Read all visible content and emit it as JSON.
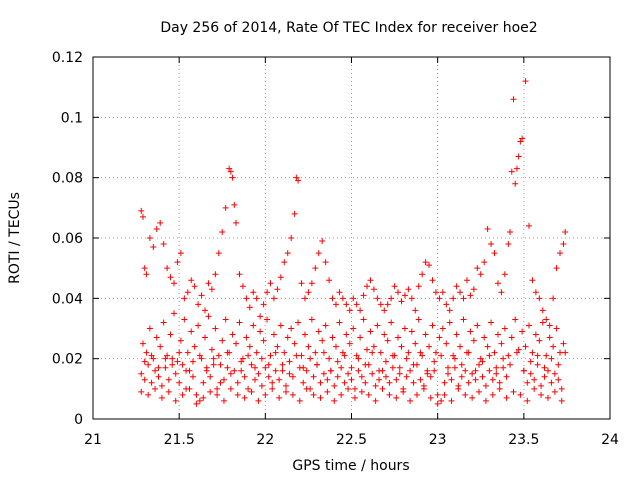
{
  "chart_data": {
    "type": "scatter",
    "title": "Day 256 of 2014, Rate Of TEC Index for receiver hoe2",
    "xlabel": "GPS time / hours",
    "ylabel": "ROTI / TECUs",
    "xlim": [
      21,
      24
    ],
    "ylim": [
      0,
      0.12
    ],
    "xticks": [
      "21",
      "21.5",
      "22",
      "22.5",
      "23",
      "23.5",
      "24"
    ],
    "yticks": [
      "0",
      "0.02",
      "0.04",
      "0.06",
      "0.08",
      "0.1",
      "0.12"
    ],
    "xtick_values": [
      21,
      21.5,
      22,
      22.5,
      23,
      23.5,
      24
    ],
    "ytick_values": [
      0,
      0.02,
      0.04,
      0.06,
      0.08,
      0.1,
      0.12
    ],
    "grid": true,
    "marker": "+",
    "color": "#ff0000",
    "series": [
      {
        "name": "ROTI",
        "x": [
          21.28,
          21.29,
          21.3,
          21.31,
          21.33,
          21.35,
          21.37,
          21.39,
          21.41,
          21.43,
          21.45,
          21.47,
          21.49,
          21.51,
          21.53,
          21.55,
          21.57,
          21.59,
          21.61,
          21.63,
          21.65,
          21.67,
          21.69,
          21.71,
          21.73,
          21.75,
          21.77,
          21.79,
          21.8,
          21.81,
          21.82,
          21.83,
          21.85,
          21.87,
          21.89,
          21.91,
          21.93,
          21.95,
          21.97,
          21.99,
          22.01,
          22.03,
          22.05,
          22.07,
          22.09,
          22.11,
          22.13,
          22.15,
          22.17,
          22.18,
          22.19,
          22.21,
          22.23,
          22.25,
          22.27,
          22.29,
          22.31,
          22.33,
          22.35,
          22.37,
          22.39,
          22.41,
          22.43,
          22.45,
          22.47,
          22.49,
          22.51,
          22.53,
          22.55,
          22.57,
          22.59,
          22.61,
          22.63,
          22.65,
          22.67,
          22.69,
          22.71,
          22.73,
          22.75,
          22.77,
          22.79,
          22.81,
          22.83,
          22.85,
          22.87,
          22.89,
          22.91,
          22.93,
          22.95,
          22.97,
          22.99,
          23.01,
          23.03,
          23.05,
          23.07,
          23.09,
          23.11,
          23.13,
          23.15,
          23.17,
          23.19,
          23.21,
          23.23,
          23.25,
          23.27,
          23.29,
          23.31,
          23.33,
          23.35,
          23.37,
          23.39,
          23.41,
          23.42,
          23.43,
          23.44,
          23.45,
          23.46,
          23.47,
          23.48,
          23.49,
          23.51,
          23.53,
          23.55,
          23.57,
          23.59,
          23.61,
          23.63,
          23.65,
          23.67,
          23.69,
          23.71,
          23.73,
          23.74,
          21.28,
          21.3,
          21.32,
          21.34,
          21.36,
          21.38,
          21.4,
          21.42,
          21.44,
          21.46,
          21.48,
          21.5,
          21.52,
          21.54,
          21.56,
          21.58,
          21.6,
          21.62,
          21.64,
          21.66,
          21.68,
          21.7,
          21.72,
          21.74,
          21.76,
          21.78,
          21.8,
          21.84,
          21.86,
          21.88,
          21.9,
          21.92,
          21.94,
          21.96,
          21.98,
          22.0,
          22.02,
          22.04,
          22.06,
          22.08,
          22.1,
          22.12,
          22.14,
          22.16,
          22.2,
          22.22,
          22.24,
          22.26,
          22.28,
          22.3,
          22.32,
          22.34,
          22.36,
          22.38,
          22.4,
          22.42,
          22.44,
          22.46,
          22.48,
          22.5,
          22.52,
          22.54,
          22.56,
          22.58,
          22.6,
          22.62,
          22.64,
          22.66,
          22.68,
          22.7,
          22.72,
          22.74,
          22.76,
          22.78,
          22.8,
          22.82,
          22.84,
          22.86,
          22.88,
          22.9,
          22.92,
          22.94,
          22.96,
          22.98,
          23.0,
          23.02,
          23.04,
          23.06,
          23.08,
          23.1,
          23.12,
          23.14,
          23.16,
          23.18,
          23.2,
          23.22,
          23.24,
          23.26,
          23.28,
          23.3,
          23.32,
          23.34,
          23.36,
          23.38,
          23.4,
          23.5,
          23.52,
          23.54,
          23.56,
          23.58,
          23.6,
          23.62,
          23.64,
          23.66,
          23.68,
          23.7,
          23.72,
          21.29,
          21.31,
          21.33,
          21.35,
          21.37,
          21.39,
          21.41,
          21.43,
          21.45,
          21.47,
          21.49,
          21.51,
          21.53,
          21.55,
          21.57,
          21.59,
          21.61,
          21.63,
          21.65,
          21.67,
          21.69,
          21.71,
          21.73,
          21.75,
          21.77,
          21.79,
          21.81,
          21.83,
          21.85,
          21.87,
          21.89,
          21.91,
          21.93,
          21.95,
          21.97,
          21.99,
          22.01,
          22.03,
          22.05,
          22.07,
          22.09,
          22.11,
          22.13,
          22.15,
          22.17,
          22.19,
          22.21,
          22.23,
          22.25,
          22.27,
          22.29,
          22.31,
          22.33,
          22.35,
          22.37,
          22.39,
          22.41,
          22.43,
          22.45,
          22.47,
          22.49,
          22.51,
          22.53,
          22.55,
          22.57,
          22.59,
          22.61,
          22.63,
          22.65,
          22.67,
          22.69,
          22.71,
          22.73,
          22.75,
          22.77,
          22.79,
          22.81,
          22.83,
          22.85,
          22.87,
          22.89,
          22.91,
          22.93,
          22.95,
          22.97,
          22.99,
          23.01,
          23.03,
          23.05,
          23.07,
          23.09,
          23.11,
          23.13,
          23.15,
          23.17,
          23.19,
          23.21,
          23.23,
          23.25,
          23.27,
          23.29,
          23.31,
          23.33,
          23.35,
          23.37,
          23.39,
          23.41,
          23.43,
          23.45,
          23.47,
          23.49,
          23.51,
          23.53,
          23.55,
          23.57,
          23.59,
          23.61,
          23.63,
          23.65,
          23.67,
          23.69,
          23.71,
          23.73,
          21.28,
          21.32,
          21.36,
          21.4,
          21.44,
          21.48,
          21.52,
          21.56,
          21.6,
          21.64,
          21.68,
          21.72,
          21.76,
          21.8,
          21.84,
          21.88,
          21.92,
          21.96,
          22.0,
          22.04,
          22.08,
          22.12,
          22.16,
          22.2,
          22.24,
          22.28,
          22.32,
          22.36,
          22.4,
          22.44,
          22.48,
          22.52,
          22.56,
          22.6,
          22.64,
          22.68,
          22.72,
          22.76,
          22.8,
          22.84,
          22.88,
          22.92,
          22.96,
          23.0,
          23.04,
          23.08,
          23.12,
          23.16,
          23.2,
          23.24,
          23.28,
          23.32,
          23.36,
          23.4,
          23.44,
          23.48,
          23.52,
          23.56,
          23.6,
          23.64,
          23.68,
          23.72,
          21.3,
          21.34,
          21.38,
          21.42,
          21.46,
          21.5,
          21.54,
          21.58,
          21.62,
          21.66,
          21.7,
          21.74,
          21.78,
          21.82,
          21.86,
          21.9,
          21.94,
          21.98,
          22.02,
          22.06,
          22.1,
          22.14,
          22.18,
          22.22,
          22.26,
          22.3,
          22.34,
          22.38,
          22.42,
          22.46,
          22.5,
          22.54,
          22.58,
          22.62,
          22.66,
          22.7,
          22.74,
          22.78,
          22.82,
          22.86,
          22.9,
          22.94,
          22.98,
          23.02,
          23.06,
          23.1,
          23.14,
          23.18,
          23.22,
          23.26,
          23.3,
          23.34,
          23.38,
          23.42,
          23.46,
          23.5,
          23.54,
          23.58,
          23.62,
          23.66,
          23.7,
          23.74
        ],
        "y": [
          0.069,
          0.067,
          0.05,
          0.048,
          0.06,
          0.057,
          0.063,
          0.065,
          0.058,
          0.05,
          0.047,
          0.045,
          0.052,
          0.055,
          0.04,
          0.042,
          0.046,
          0.044,
          0.038,
          0.041,
          0.036,
          0.045,
          0.043,
          0.048,
          0.055,
          0.062,
          0.07,
          0.083,
          0.082,
          0.08,
          0.071,
          0.065,
          0.048,
          0.044,
          0.04,
          0.037,
          0.042,
          0.04,
          0.034,
          0.038,
          0.042,
          0.045,
          0.04,
          0.043,
          0.047,
          0.052,
          0.055,
          0.06,
          0.068,
          0.08,
          0.079,
          0.045,
          0.04,
          0.042,
          0.045,
          0.05,
          0.055,
          0.059,
          0.052,
          0.046,
          0.04,
          0.038,
          0.042,
          0.04,
          0.038,
          0.036,
          0.04,
          0.038,
          0.036,
          0.041,
          0.044,
          0.046,
          0.043,
          0.04,
          0.038,
          0.036,
          0.038,
          0.04,
          0.044,
          0.042,
          0.039,
          0.041,
          0.043,
          0.04,
          0.036,
          0.044,
          0.048,
          0.052,
          0.051,
          0.046,
          0.042,
          0.04,
          0.042,
          0.038,
          0.036,
          0.04,
          0.044,
          0.042,
          0.04,
          0.046,
          0.041,
          0.043,
          0.05,
          0.048,
          0.052,
          0.063,
          0.058,
          0.055,
          0.045,
          0.042,
          0.048,
          0.058,
          0.062,
          0.082,
          0.106,
          0.078,
          0.083,
          0.087,
          0.092,
          0.093,
          0.112,
          0.064,
          0.046,
          0.042,
          0.04,
          0.036,
          0.033,
          0.031,
          0.04,
          0.05,
          0.055,
          0.058,
          0.062,
          0.015,
          0.013,
          0.018,
          0.012,
          0.016,
          0.014,
          0.011,
          0.017,
          0.013,
          0.02,
          0.015,
          0.012,
          0.018,
          0.01,
          0.016,
          0.014,
          0.008,
          0.006,
          0.012,
          0.016,
          0.014,
          0.018,
          0.01,
          0.012,
          0.013,
          0.017,
          0.015,
          0.012,
          0.016,
          0.014,
          0.01,
          0.018,
          0.013,
          0.015,
          0.011,
          0.017,
          0.014,
          0.012,
          0.016,
          0.013,
          0.018,
          0.011,
          0.015,
          0.014,
          0.017,
          0.012,
          0.016,
          0.01,
          0.014,
          0.018,
          0.012,
          0.015,
          0.013,
          0.016,
          0.011,
          0.014,
          0.017,
          0.012,
          0.015,
          0.013,
          0.01,
          0.016,
          0.014,
          0.012,
          0.018,
          0.015,
          0.011,
          0.013,
          0.016,
          0.014,
          0.012,
          0.017,
          0.013,
          0.015,
          0.01,
          0.014,
          0.016,
          0.012,
          0.018,
          0.013,
          0.011,
          0.015,
          0.014,
          0.016,
          0.008,
          0.006,
          0.012,
          0.015,
          0.013,
          0.017,
          0.011,
          0.014,
          0.016,
          0.012,
          0.015,
          0.013,
          0.018,
          0.014,
          0.011,
          0.016,
          0.013,
          0.015,
          0.012,
          0.017,
          0.014,
          0.016,
          0.012,
          0.015,
          0.013,
          0.018,
          0.011,
          0.014,
          0.016,
          0.012,
          0.015,
          0.013,
          0.01,
          0.025,
          0.022,
          0.03,
          0.02,
          0.027,
          0.024,
          0.032,
          0.021,
          0.028,
          0.035,
          0.019,
          0.026,
          0.033,
          0.022,
          0.029,
          0.024,
          0.031,
          0.02,
          0.027,
          0.034,
          0.023,
          0.03,
          0.021,
          0.026,
          0.033,
          0.022,
          0.028,
          0.025,
          0.032,
          0.02,
          0.027,
          0.024,
          0.031,
          0.022,
          0.029,
          0.026,
          0.033,
          0.021,
          0.028,
          0.024,
          0.031,
          0.022,
          0.027,
          0.03,
          0.025,
          0.032,
          0.021,
          0.028,
          0.024,
          0.033,
          0.022,
          0.029,
          0.026,
          0.031,
          0.02,
          0.027,
          0.024,
          0.032,
          0.022,
          0.028,
          0.025,
          0.03,
          0.021,
          0.027,
          0.033,
          0.023,
          0.029,
          0.024,
          0.031,
          0.022,
          0.028,
          0.026,
          0.032,
          0.021,
          0.027,
          0.024,
          0.03,
          0.022,
          0.029,
          0.025,
          0.033,
          0.021,
          0.028,
          0.024,
          0.031,
          0.022,
          0.027,
          0.03,
          0.025,
          0.032,
          0.021,
          0.028,
          0.024,
          0.033,
          0.022,
          0.029,
          0.026,
          0.031,
          0.02,
          0.027,
          0.024,
          0.032,
          0.022,
          0.028,
          0.025,
          0.03,
          0.021,
          0.027,
          0.033,
          0.023,
          0.029,
          0.024,
          0.031,
          0.022,
          0.028,
          0.026,
          0.032,
          0.021,
          0.027,
          0.024,
          0.03,
          0.022,
          0.025,
          0.009,
          0.008,
          0.01,
          0.007,
          0.009,
          0.006,
          0.008,
          0.01,
          0.005,
          0.007,
          0.009,
          0.008,
          0.006,
          0.01,
          0.008,
          0.007,
          0.009,
          0.006,
          0.008,
          0.01,
          0.007,
          0.009,
          0.008,
          0.006,
          0.01,
          0.008,
          0.007,
          0.009,
          0.006,
          0.008,
          0.01,
          0.007,
          0.009,
          0.008,
          0.006,
          0.01,
          0.008,
          0.007,
          0.009,
          0.006,
          0.008,
          0.01,
          0.007,
          0.005,
          0.008,
          0.006,
          0.01,
          0.008,
          0.007,
          0.009,
          0.006,
          0.008,
          0.01,
          0.007,
          0.009,
          0.008,
          0.006,
          0.01,
          0.008,
          0.007,
          0.009,
          0.006,
          0.019,
          0.021,
          0.017,
          0.02,
          0.018,
          0.022,
          0.016,
          0.019,
          0.021,
          0.017,
          0.02,
          0.018,
          0.022,
          0.016,
          0.019,
          0.021,
          0.017,
          0.02,
          0.018,
          0.022,
          0.016,
          0.019,
          0.021,
          0.017,
          0.02,
          0.018,
          0.022,
          0.016,
          0.019,
          0.021,
          0.017,
          0.02,
          0.018,
          0.022,
          0.016,
          0.019,
          0.021,
          0.017,
          0.02,
          0.018,
          0.022,
          0.016,
          0.019,
          0.021,
          0.017,
          0.02,
          0.018,
          0.022,
          0.016,
          0.019,
          0.021,
          0.017,
          0.02,
          0.018,
          0.022,
          0.016,
          0.019,
          0.021,
          0.017,
          0.02,
          0.018,
          0.022
        ]
      }
    ]
  }
}
